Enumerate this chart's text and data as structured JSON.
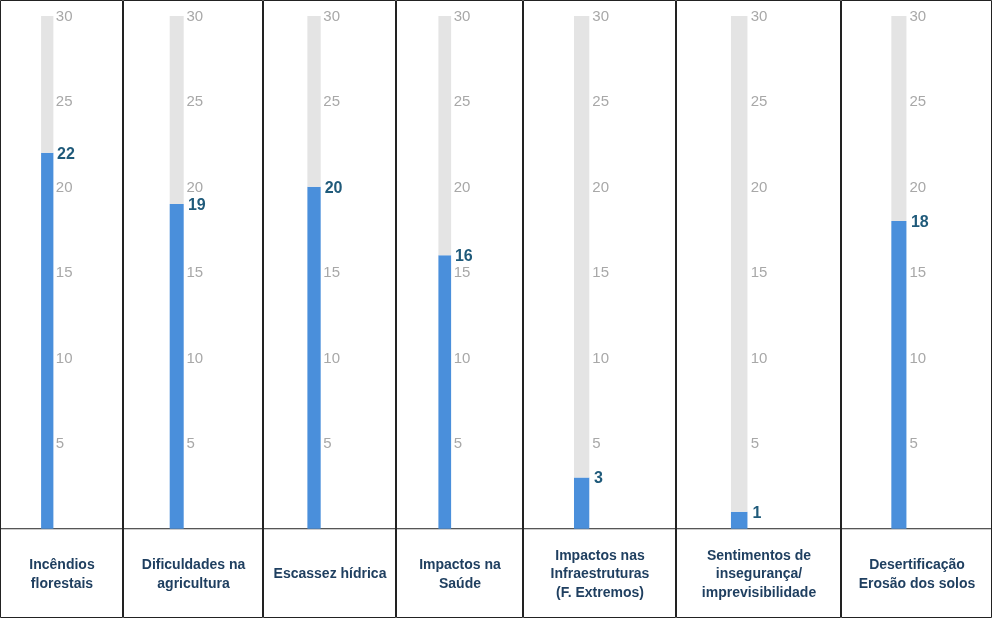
{
  "chart_data": [
    {
      "type": "bar",
      "stacked": true,
      "categories": [
        "Incêndios florestais"
      ],
      "series": [
        {
          "color": "#4a8fdb",
          "values": [
            22
          ],
          "value_labels": [
            "22"
          ]
        },
        {
          "color": "#e4e4e4",
          "values": [
            8
          ]
        }
      ],
      "ylim": [
        0,
        30
      ],
      "yticks": [
        5,
        10,
        15,
        20,
        25,
        30
      ]
    },
    {
      "type": "bar",
      "stacked": true,
      "categories": [
        "Dificuldades na agricultura"
      ],
      "series": [
        {
          "color": "#4a8fdb",
          "values": [
            19
          ],
          "value_labels": [
            "19"
          ]
        },
        {
          "color": "#e4e4e4",
          "values": [
            11
          ]
        }
      ],
      "ylim": [
        0,
        30
      ],
      "yticks": [
        5,
        10,
        15,
        20,
        25,
        30
      ]
    },
    {
      "type": "bar",
      "stacked": true,
      "categories": [
        "Escassez hídrica"
      ],
      "series": [
        {
          "color": "#4a8fdb",
          "values": [
            20
          ],
          "value_labels": [
            "20"
          ]
        },
        {
          "color": "#e4e4e4",
          "values": [
            10
          ]
        }
      ],
      "ylim": [
        0,
        30
      ],
      "yticks": [
        5,
        10,
        15,
        25,
        30
      ]
    },
    {
      "type": "bar",
      "stacked": true,
      "categories": [
        "Impactos na Saúde"
      ],
      "series": [
        {
          "color": "#4a8fdb",
          "values": [
            16
          ],
          "value_labels": [
            "16"
          ]
        },
        {
          "color": "#e4e4e4",
          "values": [
            14
          ]
        }
      ],
      "ylim": [
        0,
        30
      ],
      "yticks": [
        5,
        10,
        15,
        20,
        25,
        30
      ]
    },
    {
      "type": "bar",
      "stacked": true,
      "categories": [
        "Impactos nas Infraestruturas (F. Extremos)"
      ],
      "series": [
        {
          "color": "#4a8fdb",
          "values": [
            3
          ],
          "value_labels": [
            "3"
          ]
        },
        {
          "color": "#e4e4e4",
          "values": [
            27
          ]
        }
      ],
      "ylim": [
        0,
        30
      ],
      "yticks": [
        5,
        10,
        15,
        20,
        25,
        30
      ]
    },
    {
      "type": "bar",
      "stacked": true,
      "categories": [
        "Sentimentos de insegurança/ imprevisibilidade"
      ],
      "series": [
        {
          "color": "#4a8fdb",
          "values": [
            1
          ],
          "value_labels": [
            "1"
          ]
        },
        {
          "color": "#e4e4e4",
          "values": [
            29
          ]
        }
      ],
      "ylim": [
        0,
        30
      ],
      "yticks": [
        5,
        10,
        15,
        20,
        25,
        30
      ]
    },
    {
      "type": "bar",
      "stacked": true,
      "categories": [
        "Desertificação Erosão dos solos"
      ],
      "series": [
        {
          "color": "#4a8fdb",
          "values": [
            18
          ],
          "value_labels": [
            "18"
          ]
        },
        {
          "color": "#e4e4e4",
          "values": [
            12
          ]
        }
      ],
      "ylim": [
        0,
        30
      ],
      "yticks": [
        5,
        10,
        15,
        20,
        25,
        30
      ]
    }
  ]
}
